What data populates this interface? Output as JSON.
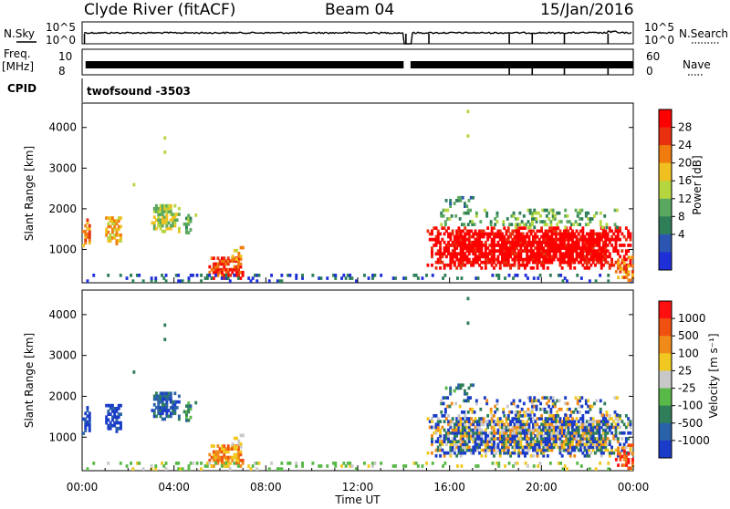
{
  "header": {
    "station": "Clyde River (fitACF)",
    "beam": "Beam 04",
    "date": "15/Jan/2016"
  },
  "status_panels": {
    "nsky_label": "N.Sky",
    "nsky_ticks": [
      "10^5",
      "10^0"
    ],
    "nsearch_label": "N.Search",
    "nsearch_ticks": [
      "10^5",
      "10^0"
    ],
    "freq_label": "Freq.",
    "freq_unit": "[MHz]",
    "freq_ticks": [
      "10",
      "8"
    ],
    "nave_label": "Nave",
    "nave_ticks": [
      "60",
      "0"
    ],
    "cpid_label": "CPID",
    "cpid_value": "twofsound -3503"
  },
  "chart_data": [
    {
      "type": "heatmap",
      "name": "power",
      "ylabel": "Slant Range [km]",
      "ylim": [
        180,
        4600
      ],
      "yticks": [
        "1000",
        "2000",
        "3000",
        "4000"
      ],
      "xlim": [
        0,
        24
      ],
      "colorbar_label": "Power [dB]",
      "colorbar_ticks": [
        "4",
        "8",
        "12",
        "16",
        "20",
        "24",
        "28"
      ],
      "colors": [
        "#1f2fd8",
        "#2b55b0",
        "#2e7f58",
        "#5aa860",
        "#b6d640",
        "#f0c020",
        "#f07c10",
        "#e83010",
        "#ff0000"
      ]
    },
    {
      "type": "heatmap",
      "name": "velocity",
      "xlabel": "Time UT",
      "ylabel": "Slant Range [km]",
      "ylim": [
        180,
        4600
      ],
      "yticks": [
        "1000",
        "2000",
        "3000",
        "4000"
      ],
      "xlim": [
        0,
        24
      ],
      "xticks": [
        "00:00",
        "04:00",
        "08:00",
        "12:00",
        "16:00",
        "20:00",
        "00:00"
      ],
      "colorbar_label": "Velocity [m s⁻¹]",
      "colorbar_ticks": [
        "1000",
        "500",
        "100",
        "25",
        "-25",
        "-100",
        "-500",
        "-1000"
      ],
      "colors": [
        "#1a3cc8",
        "#2a62a8",
        "#2f7e5a",
        "#58b848",
        "#c8c8c8",
        "#f0c820",
        "#f08a18",
        "#f05010",
        "#ff1010"
      ]
    }
  ]
}
